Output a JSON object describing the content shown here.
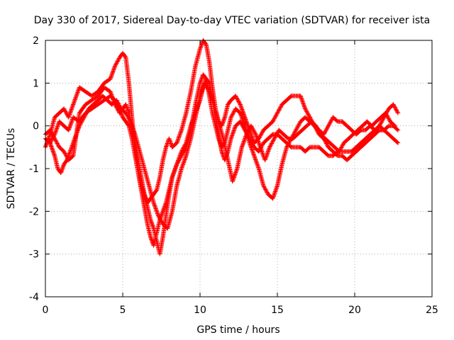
{
  "chart_data": {
    "type": "scatter",
    "title": "Day 330 of 2017, Sidereal Day-to-day VTEC variation (SDTVAR) for receiver ista",
    "xlabel": "GPS time / hours",
    "ylabel": "SDTVAR / TECUs",
    "xlim": [
      0,
      25
    ],
    "ylim": [
      -4,
      2
    ],
    "xticks": [
      "0",
      "5",
      "10",
      "15",
      "20",
      "25"
    ],
    "yticks": [
      "-4",
      "-3",
      "-2",
      "-1",
      "0",
      "1",
      "2"
    ],
    "grid": true,
    "marker": "plus",
    "color": "#ff0000",
    "series": [
      {
        "x": [
          0,
          0.3,
          0.6,
          0.9,
          1.2,
          1.5,
          1.8,
          2.2,
          2.6,
          3.0,
          3.4,
          3.8,
          4.2,
          4.5,
          4.8,
          5.0,
          5.2,
          5.4,
          5.6,
          5.8,
          6.0,
          6.2,
          6.4,
          6.6,
          6.8,
          7.0,
          7.2,
          7.4,
          7.6,
          7.8,
          8.0,
          8.2,
          8.5,
          8.8,
          9.1,
          9.4,
          9.7,
          10.0,
          10.2,
          10.4,
          10.6,
          10.8,
          11.0,
          11.2,
          11.4,
          11.6,
          11.8,
          12.0,
          12.3,
          12.6,
          12.9,
          13.2,
          13.5,
          13.8,
          14.1,
          14.4,
          14.7,
          15.0,
          15.3,
          15.6,
          15.9,
          16.2,
          16.5,
          16.8,
          17.1,
          17.4,
          17.7,
          18.0,
          18.3,
          18.6,
          18.9,
          19.2,
          19.5,
          19.8,
          20.1,
          20.4,
          20.7,
          21.0,
          21.3,
          21.6,
          21.9,
          22.2,
          22.5,
          22.8
        ],
        "y": [
          -0.5,
          -0.2,
          0.2,
          0.3,
          0.4,
          0.2,
          0.5,
          0.9,
          0.8,
          0.7,
          0.8,
          1.0,
          1.1,
          1.4,
          1.6,
          1.7,
          1.6,
          1.0,
          0.2,
          -0.5,
          -1.0,
          -1.4,
          -1.6,
          -1.8,
          -1.7,
          -1.6,
          -1.5,
          -1.2,
          -0.8,
          -0.5,
          -0.3,
          -0.5,
          -0.4,
          -0.1,
          0.3,
          0.8,
          1.4,
          1.8,
          2.0,
          1.9,
          1.5,
          0.9,
          0.4,
          0.1,
          0.0,
          0.2,
          0.5,
          0.6,
          0.7,
          0.5,
          0.2,
          -0.1,
          -0.4,
          -0.3,
          -0.1,
          0.0,
          0.1,
          0.3,
          0.5,
          0.6,
          0.7,
          0.7,
          0.7,
          0.4,
          0.2,
          0.0,
          -0.1,
          -0.2,
          0.0,
          0.2,
          0.1,
          0.1,
          0.0,
          -0.1,
          -0.2,
          -0.1,
          -0.1,
          0.0,
          -0.1,
          0.0,
          0.2,
          0.4,
          0.5,
          0.3
        ]
      },
      {
        "x": [
          0,
          0.3,
          0.6,
          0.9,
          1.2,
          1.5,
          1.8,
          2.2,
          2.6,
          3.0,
          3.4,
          3.8,
          4.2,
          4.5,
          4.8,
          5.0,
          5.2,
          5.4,
          5.6,
          5.8,
          6.0,
          6.2,
          6.4,
          6.6,
          6.8,
          7.0,
          7.2,
          7.4,
          7.6,
          7.8,
          8.0,
          8.2,
          8.5,
          8.8,
          9.1,
          9.4,
          9.7,
          10.0,
          10.2,
          10.4,
          10.6,
          10.8,
          11.0,
          11.2,
          11.4,
          11.6,
          11.8,
          12.0,
          12.3,
          12.6,
          12.9,
          13.2,
          13.5,
          13.8,
          14.1,
          14.4,
          14.7,
          15.0,
          15.3,
          15.6,
          15.9,
          16.2,
          16.5,
          16.8,
          17.1,
          17.4,
          17.7,
          18.0,
          18.3,
          18.6,
          18.9,
          19.2,
          19.5,
          19.8,
          20.1,
          20.4,
          20.7,
          21.0,
          21.3,
          21.6,
          21.9,
          22.2,
          22.5,
          22.8
        ],
        "y": [
          -0.2,
          -0.1,
          -0.3,
          -0.5,
          -0.6,
          -0.8,
          -0.7,
          0.3,
          0.5,
          0.6,
          0.7,
          0.9,
          0.8,
          0.5,
          0.3,
          0.4,
          0.5,
          0.3,
          -0.1,
          -0.4,
          -0.8,
          -1.2,
          -1.6,
          -1.9,
          -2.2,
          -2.4,
          -2.7,
          -3.0,
          -2.6,
          -2.1,
          -1.6,
          -1.2,
          -0.9,
          -0.7,
          -0.5,
          -0.1,
          0.5,
          1.0,
          1.2,
          1.1,
          0.7,
          0.3,
          0.0,
          -0.3,
          -0.5,
          -0.4,
          -0.1,
          0.2,
          0.4,
          0.3,
          0.0,
          -0.4,
          -0.7,
          -1.0,
          -1.4,
          -1.6,
          -1.7,
          -1.4,
          -0.9,
          -0.5,
          -0.3,
          -0.1,
          0.1,
          0.2,
          0.1,
          0.0,
          -0.2,
          -0.3,
          -0.5,
          -0.6,
          -0.7,
          -0.7,
          -0.8,
          -0.7,
          -0.6,
          -0.5,
          -0.4,
          -0.3,
          -0.2,
          -0.1,
          -0.1,
          0.0,
          0.0,
          -0.1
        ]
      },
      {
        "x": [
          0,
          0.3,
          0.6,
          0.9,
          1.2,
          1.5,
          1.8,
          2.2,
          2.6,
          3.0,
          3.4,
          3.8,
          4.2,
          4.5,
          4.8,
          5.0,
          5.2,
          5.4,
          5.6,
          5.8,
          6.0,
          6.2,
          6.4,
          6.6,
          6.8,
          7.0,
          7.2,
          7.4,
          7.6,
          7.8,
          8.0,
          8.2,
          8.5,
          8.8,
          9.1,
          9.4,
          9.7,
          10.0,
          10.2,
          10.4,
          10.6,
          10.8,
          11.0,
          11.2,
          11.4,
          11.6,
          11.8,
          12.0,
          12.3,
          12.6,
          12.9,
          13.2,
          13.5,
          13.8,
          14.1,
          14.4,
          14.7,
          15.0,
          15.3,
          15.6,
          15.9,
          16.2,
          16.5,
          16.8,
          17.1,
          17.4,
          17.7,
          18.0,
          18.3,
          18.6,
          18.9,
          19.2,
          19.5,
          19.8,
          20.1,
          20.4,
          20.7,
          21.0,
          21.3,
          21.6,
          21.9,
          22.2,
          22.5,
          22.8
        ],
        "y": [
          -0.3,
          -0.4,
          -0.2,
          0.1,
          0.0,
          -0.1,
          0.2,
          0.1,
          0.3,
          0.4,
          0.5,
          0.6,
          0.7,
          0.6,
          0.4,
          0.2,
          0.1,
          0.0,
          -0.3,
          -0.7,
          -1.1,
          -1.5,
          -1.9,
          -2.3,
          -2.6,
          -2.8,
          -2.5,
          -2.2,
          -2.0,
          -1.8,
          -1.5,
          -1.2,
          -0.9,
          -0.6,
          -0.4,
          0.0,
          0.3,
          0.6,
          0.9,
          1.1,
          1.0,
          0.6,
          0.2,
          -0.2,
          -0.6,
          -0.8,
          -0.6,
          -0.3,
          0.0,
          0.1,
          -0.1,
          -0.3,
          -0.5,
          -0.6,
          -0.4,
          -0.3,
          -0.2,
          -0.2,
          -0.3,
          -0.4,
          -0.5,
          -0.5,
          -0.5,
          -0.6,
          -0.5,
          -0.5,
          -0.5,
          -0.6,
          -0.7,
          -0.7,
          -0.6,
          -0.6,
          -0.6,
          -0.6,
          -0.5,
          -0.4,
          -0.3,
          -0.2,
          -0.1,
          0.0,
          -0.1,
          -0.2,
          -0.3,
          -0.4
        ]
      },
      {
        "x": [
          0.2,
          0.4,
          0.6,
          0.8,
          1.0,
          1.2,
          1.4,
          1.6,
          1.9,
          2.2,
          2.5,
          2.8,
          3.1,
          3.4,
          3.7,
          4.0,
          4.3,
          4.6,
          4.9,
          5.2,
          5.5,
          5.8,
          6.1,
          6.4,
          6.7,
          7.0,
          7.3,
          7.6,
          7.9,
          8.2,
          8.5,
          8.8,
          9.1,
          9.4,
          9.7,
          10.0,
          10.3,
          10.6,
          10.9,
          11.2,
          11.5,
          11.8,
          12.1,
          12.4,
          12.7,
          13.0,
          13.3,
          13.6,
          13.9,
          14.2,
          14.5,
          14.8,
          15.1,
          15.4,
          15.7,
          16.0,
          16.3,
          16.6,
          16.9,
          17.2,
          17.5,
          17.8,
          18.1,
          18.4,
          18.7,
          19.0,
          19.3,
          19.6,
          19.9,
          20.2,
          20.5,
          20.8,
          21.1,
          21.4,
          21.7,
          22.0,
          22.3,
          22.6
        ],
        "y": [
          -0.3,
          -0.5,
          -0.7,
          -1.0,
          -1.1,
          -0.9,
          -0.8,
          -0.6,
          -0.3,
          0.0,
          0.2,
          0.4,
          0.5,
          0.6,
          0.7,
          0.6,
          0.5,
          0.6,
          0.4,
          0.3,
          0.1,
          -0.2,
          -0.6,
          -1.0,
          -1.4,
          -1.8,
          -2.1,
          -2.3,
          -2.4,
          -2.0,
          -1.4,
          -1.0,
          -0.7,
          -0.3,
          0.2,
          0.7,
          1.0,
          0.8,
          0.5,
          0.1,
          -0.3,
          -0.8,
          -1.3,
          -1.0,
          -0.5,
          -0.2,
          0.0,
          -0.2,
          -0.5,
          -0.8,
          -0.5,
          -0.3,
          -0.1,
          -0.2,
          -0.3,
          -0.3,
          -0.2,
          -0.1,
          0.0,
          0.1,
          0.0,
          -0.2,
          -0.3,
          -0.4,
          -0.5,
          -0.6,
          -0.4,
          -0.3,
          -0.2,
          -0.1,
          0.0,
          0.1,
          0.0,
          0.1,
          0.2,
          0.3,
          0.1,
          0.0
        ]
      }
    ]
  }
}
